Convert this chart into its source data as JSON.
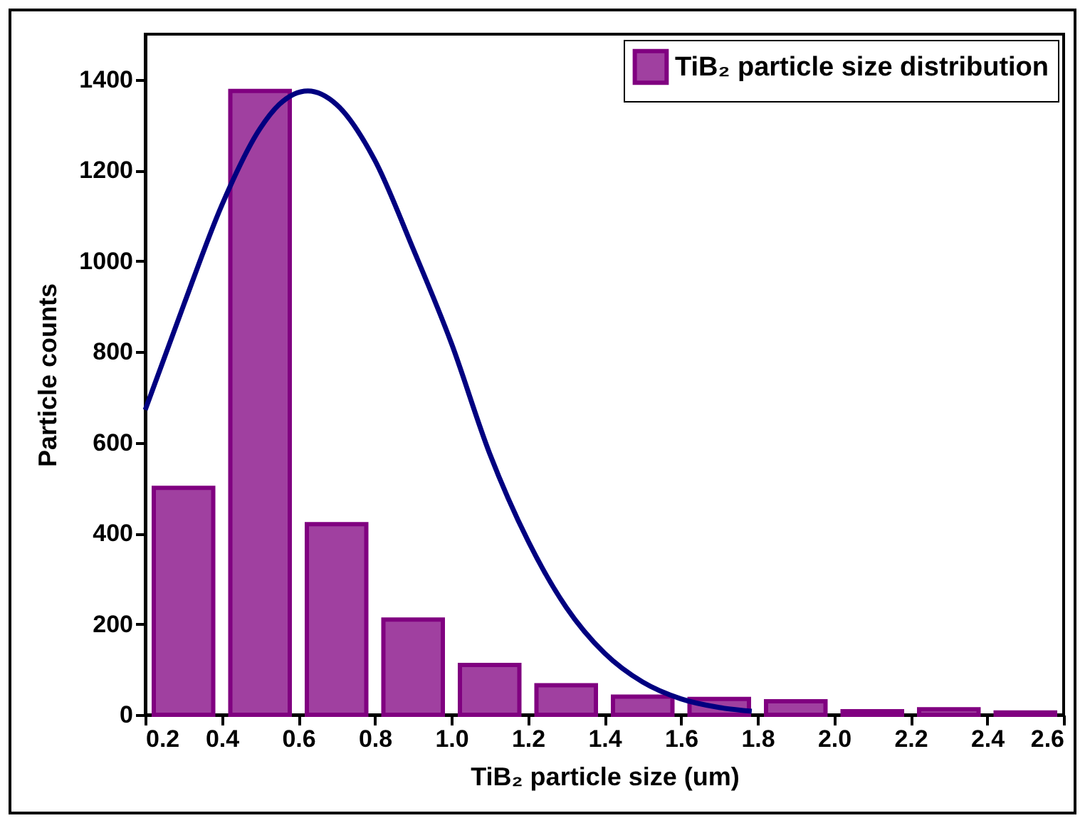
{
  "chart_data": {
    "type": "histogram",
    "xlabel": "TiB₂ particle size (um)",
    "ylabel": "Particle counts",
    "bins": [
      0.2,
      0.4,
      0.6,
      0.8,
      1.0,
      1.2,
      1.4,
      1.6,
      1.8,
      2.0,
      2.2,
      2.4,
      2.6
    ],
    "series": [
      {
        "name": "TiB₂ particle size distribution",
        "color": "#a040a0",
        "values": [
          500,
          1375,
          420,
          210,
          110,
          65,
          40,
          35,
          30,
          8,
          12,
          5
        ]
      },
      {
        "type": "line",
        "color": "#000080",
        "x": [
          0.2,
          0.3,
          0.4,
          0.5,
          0.55,
          0.625,
          0.7,
          0.8,
          0.9,
          1.0,
          1.1,
          1.2,
          1.3,
          1.4,
          1.5,
          1.6,
          1.7,
          1.785
        ],
        "values": [
          672,
          902,
          1123,
          1292,
          1345,
          1375,
          1345,
          1222,
          1027,
          819,
          576,
          384,
          237,
          136,
          72,
          35,
          16,
          8
        ]
      }
    ],
    "xlim": [
      0.2,
      2.6
    ],
    "xticks": [
      0.2,
      0.4,
      0.6,
      0.8,
      {
        "value": 1,
        "label": "1.0"
      },
      1.2,
      1.4,
      1.6,
      1.8,
      {
        "value": 2,
        "label": "2.0"
      },
      2.2,
      2.4,
      2.6
    ],
    "ylim": [
      0,
      1500
    ],
    "yticks": [
      0,
      200,
      400,
      600,
      800,
      1000,
      1200,
      1400
    ],
    "legend": "top right"
  }
}
